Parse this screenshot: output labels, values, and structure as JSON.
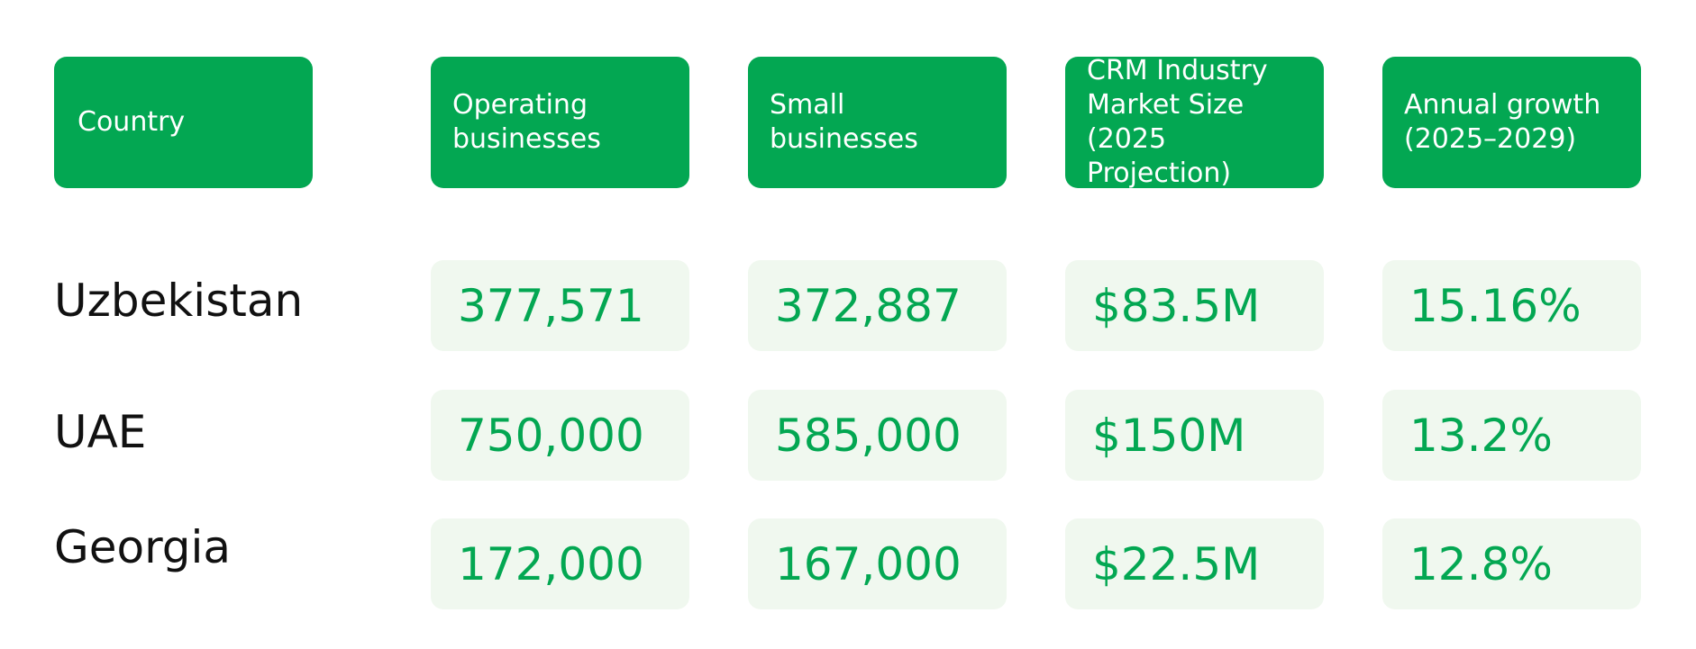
{
  "chart_data": {
    "type": "table",
    "columns": [
      "Country",
      "Operating\nbusinesses",
      "Small\nbusinesses",
      "CRM Industry\nMarket Size\n(2025 Projection)",
      "Annual growth\n(2025–2029)"
    ],
    "rows": [
      [
        "Uzbekistan",
        "377,571",
        "372,887",
        "$83.5M",
        "15.16%"
      ],
      [
        "UAE",
        "750,000",
        "585,000",
        "$150M",
        "13.2%"
      ],
      [
        "Georgia",
        "172,000",
        "167,000",
        "$22.5M",
        "12.8%"
      ]
    ]
  },
  "colors": {
    "header_background": "#03a752",
    "header_text": "#ffffff",
    "cell_background": "#f0f8ef",
    "value_text": "#03a752",
    "label_text": "#111111"
  }
}
